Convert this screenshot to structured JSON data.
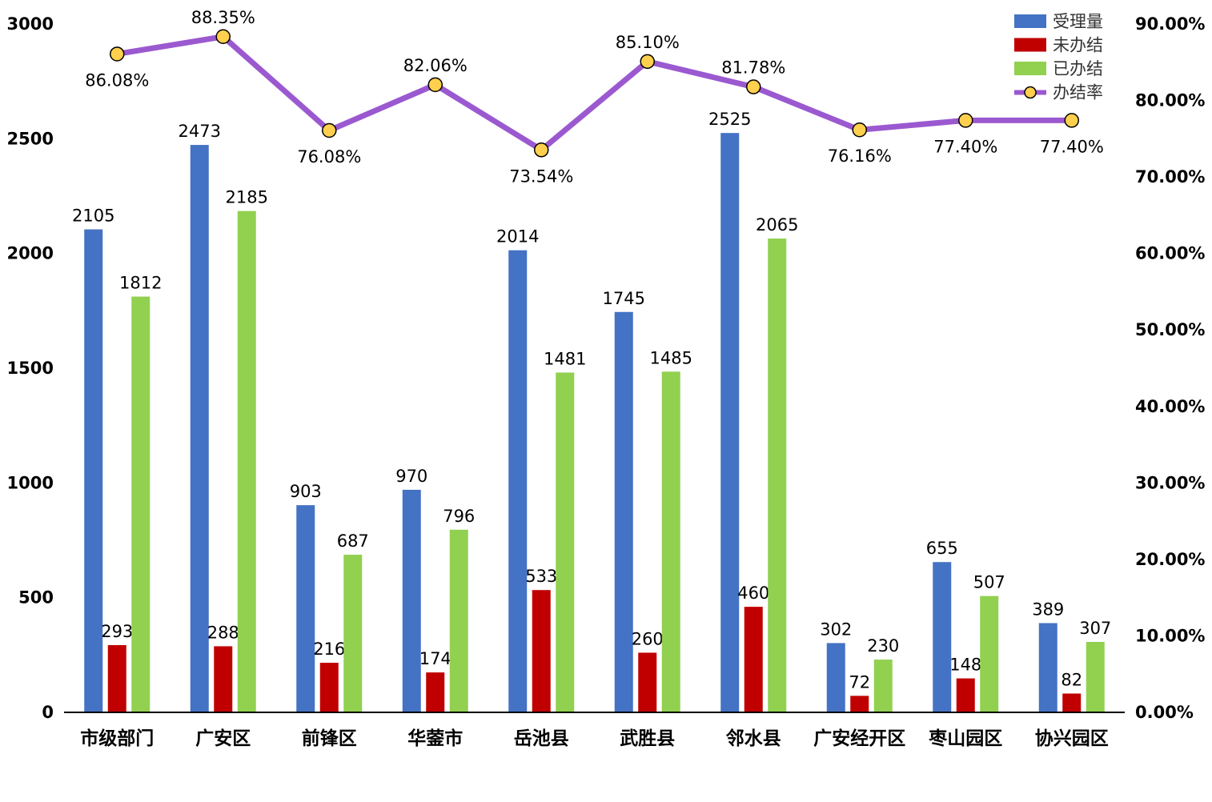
{
  "chart_data": {
    "type": "bar",
    "categories": [
      "市级部门",
      "广安区",
      "前锋区",
      "华蓥市",
      "岳池县",
      "武胜县",
      "邻水县",
      "广安经开区",
      "枣山园区",
      "协兴园区"
    ],
    "series": [
      {
        "name": "受理量",
        "kind": "bar",
        "axis": "left",
        "color": "#4472C4",
        "values": [
          2105,
          2473,
          903,
          970,
          2014,
          1745,
          2525,
          302,
          655,
          389
        ],
        "labels": [
          "2105",
          "2473",
          "903",
          "970",
          "2014",
          "1745",
          "2525",
          "302",
          "655",
          "389"
        ]
      },
      {
        "name": "未办结",
        "kind": "bar",
        "axis": "left",
        "color": "#C00000",
        "values": [
          293,
          288,
          216,
          174,
          533,
          260,
          460,
          72,
          148,
          82
        ],
        "labels": [
          "293",
          "288",
          "216",
          "174",
          "533",
          "260",
          "460",
          "72",
          "148",
          "82"
        ]
      },
      {
        "name": "已办结",
        "kind": "bar",
        "axis": "left",
        "color": "#92D050",
        "values": [
          1812,
          2185,
          687,
          796,
          1481,
          1485,
          2065,
          230,
          507,
          307
        ],
        "labels": [
          "1812",
          "2185",
          "687",
          "796",
          "1481",
          "1485",
          "2065",
          "230",
          "507",
          "307"
        ]
      },
      {
        "name": "办结率",
        "kind": "line",
        "axis": "right",
        "color": "#9B59D0",
        "marker_color": "#FFD04D",
        "values": [
          86.08,
          88.35,
          76.08,
          82.06,
          73.54,
          85.1,
          81.78,
          76.16,
          77.4,
          77.4
        ],
        "labels": [
          "86.08%",
          "88.35%",
          "76.08%",
          "82.06%",
          "73.54%",
          "85.10%",
          "81.78%",
          "76.16%",
          "77.40%",
          "77.40%"
        ],
        "label_side": [
          "below",
          "above",
          "below",
          "above",
          "below",
          "above",
          "above",
          "below",
          "below",
          "below"
        ]
      }
    ],
    "y_left": {
      "ylim": [
        0,
        3000
      ],
      "ticks": [
        "0",
        "500",
        "1000",
        "1500",
        "2000",
        "2500",
        "3000"
      ]
    },
    "y_right": {
      "ylim": [
        0,
        90
      ],
      "ticks": [
        "0.00%",
        "10.00%",
        "20.00%",
        "30.00%",
        "40.00%",
        "50.00%",
        "60.00%",
        "70.00%",
        "80.00%",
        "90.00%"
      ]
    },
    "legend_position": "top-right",
    "grid": false
  }
}
